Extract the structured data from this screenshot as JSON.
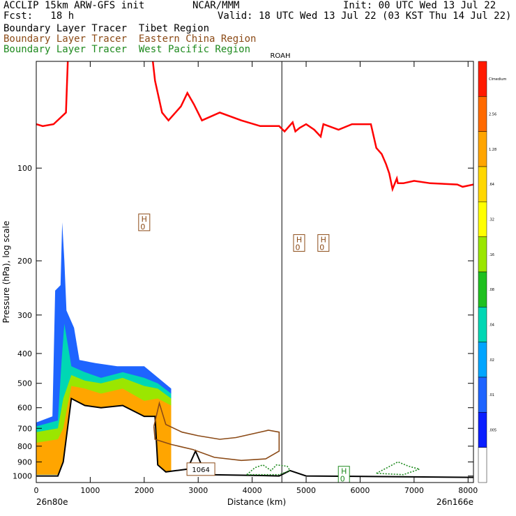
{
  "header": {
    "model": "ACCLIP 15km ARW-GFS init",
    "org": "NCAR/MMM",
    "init": "Init: 00 UTC Wed 13 Jul 22",
    "fcst": "Fcst:   18 h",
    "valid": "Valid: 18 UTC Wed 13 Jul 22 (03 KST Thu 14 Jul 22)",
    "legend": [
      {
        "label": "Boundary Layer Tracer  Tibet Region",
        "color": "#000000"
      },
      {
        "label": "Boundary Layer Tracer  Eastern China Region",
        "color": "#8B4A16"
      },
      {
        "label": "Boundary Layer Tracer  West Pacific Region",
        "color": "#1e8a1e"
      }
    ]
  },
  "chart_data": {
    "type": "line",
    "xlabel": "Distance (km)",
    "ylabel": "Pressure (hPa), log scale",
    "x_ticks": [
      "0",
      "1000",
      "2000",
      "3000",
      "4000",
      "5000",
      "6000",
      "7000",
      "8000"
    ],
    "y_ticks": [
      "100",
      "200",
      "300",
      "400",
      "500",
      "600",
      "700",
      "800",
      "900",
      "1000"
    ],
    "xlim": [
      0,
      8100
    ],
    "ylim": [
      1050,
      45
    ],
    "y_scale": "log",
    "left_end_label": "26n80e",
    "right_end_label": "26n166e",
    "station": {
      "label": "ROAH",
      "x": 4550
    },
    "series": [
      {
        "color": "#ff0000",
        "kind": "tropopause",
        "points": [
          [
            0,
            72
          ],
          [
            120,
            73
          ],
          [
            320,
            72
          ],
          [
            550,
            66
          ],
          [
            620,
            30
          ],
          [
            2080,
            30
          ],
          [
            2160,
            45
          ],
          [
            2200,
            52
          ],
          [
            2330,
            66
          ],
          [
            2450,
            70
          ],
          [
            2680,
            63
          ],
          [
            2800,
            57
          ],
          [
            2920,
            62
          ],
          [
            3070,
            70
          ],
          [
            3400,
            66
          ],
          [
            3800,
            70
          ],
          [
            4150,
            73
          ],
          [
            4500,
            73
          ],
          [
            4600,
            76
          ],
          [
            4750,
            71
          ],
          [
            4800,
            76
          ],
          [
            4880,
            74
          ],
          [
            5000,
            72
          ],
          [
            5150,
            75
          ],
          [
            5270,
            79
          ],
          [
            5320,
            72
          ],
          [
            5600,
            75
          ],
          [
            5850,
            72
          ],
          [
            6000,
            72
          ],
          [
            6200,
            72
          ],
          [
            6300,
            86
          ],
          [
            6400,
            90
          ],
          [
            6480,
            97
          ],
          [
            6540,
            104
          ],
          [
            6600,
            117
          ],
          [
            6680,
            108
          ],
          [
            6700,
            112
          ],
          [
            6800,
            112
          ],
          [
            7000,
            110
          ],
          [
            7300,
            112
          ],
          [
            7800,
            113
          ],
          [
            7900,
            115
          ],
          [
            8100,
            113
          ]
        ]
      },
      {
        "color": "#000000",
        "kind": "terrain",
        "points": [
          [
            0,
            1000
          ],
          [
            400,
            1000
          ],
          [
            500,
            900
          ],
          [
            650,
            560
          ],
          [
            900,
            590
          ],
          [
            1200,
            600
          ],
          [
            1600,
            590
          ],
          [
            2000,
            640
          ],
          [
            2200,
            640
          ],
          [
            2250,
            920
          ],
          [
            2400,
            970
          ],
          [
            2600,
            960
          ],
          [
            2800,
            950
          ],
          [
            2950,
            830
          ],
          [
            3050,
            910
          ],
          [
            3200,
            990
          ],
          [
            4000,
            995
          ],
          [
            4500,
            1000
          ],
          [
            4700,
            960
          ],
          [
            5000,
            1000
          ],
          [
            8100,
            1010
          ]
        ]
      },
      {
        "color": "#8B4A16",
        "kind": "tracer-contour",
        "points": [
          [
            2180,
            690
          ],
          [
            2280,
            580
          ],
          [
            2400,
            680
          ],
          [
            2700,
            720
          ],
          [
            3000,
            740
          ],
          [
            3400,
            760
          ],
          [
            3700,
            750
          ],
          [
            4300,
            710
          ],
          [
            4500,
            720
          ],
          [
            4500,
            830
          ],
          [
            4250,
            880
          ],
          [
            3800,
            890
          ],
          [
            3300,
            870
          ],
          [
            2900,
            820
          ],
          [
            2500,
            790
          ],
          [
            2200,
            760
          ],
          [
            2180,
            690
          ]
        ]
      },
      {
        "color": "#1e8a1e",
        "kind": "tracer-contour",
        "points": [
          [
            3900,
            990
          ],
          [
            4050,
            940
          ],
          [
            4200,
            920
          ],
          [
            4350,
            960
          ],
          [
            4450,
            920
          ],
          [
            4650,
            930
          ],
          [
            4700,
            960
          ],
          [
            4500,
            990
          ],
          [
            4200,
            990
          ],
          [
            3900,
            990
          ]
        ]
      },
      {
        "color": "#1e8a1e",
        "kind": "tracer-contour",
        "points": [
          [
            6300,
            980
          ],
          [
            6500,
            940
          ],
          [
            6700,
            900
          ],
          [
            6900,
            930
          ],
          [
            7100,
            950
          ],
          [
            6800,
            990
          ],
          [
            6300,
            980
          ]
        ]
      }
    ],
    "shaded_field": {
      "name": "Boundary Layer Tracer Tibet Region",
      "scale": "log"
    },
    "highs": [
      {
        "label": "H",
        "value": "0",
        "x": 2000,
        "p": 150
      },
      {
        "label": "H",
        "value": "0",
        "x": 4870,
        "p": 175
      },
      {
        "label": "H",
        "value": "0",
        "x": 5320,
        "p": 175
      },
      {
        "label": "H",
        "value": "0",
        "x": 5700,
        "p": 990
      }
    ],
    "annotation": {
      "label": "1064",
      "x": 3050,
      "p": 950
    },
    "colorbar": {
      "labels": [
        "Clmedium",
        "2.56",
        "1.28",
        ".64",
        ".32",
        ".16",
        ".08",
        ".04",
        ".02",
        ".01",
        ".005"
      ],
      "colors": [
        "#ff1a00",
        "#ff6a00",
        "#ffa500",
        "#ffd700",
        "#ffff00",
        "#9be600",
        "#1fc01f",
        "#00d7b4",
        "#00a5ff",
        "#1e64ff",
        "#0a1eff",
        "#ffffff"
      ]
    }
  }
}
